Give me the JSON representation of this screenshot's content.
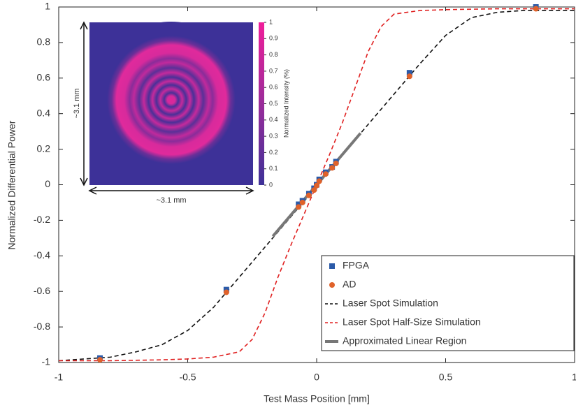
{
  "chart_data": {
    "type": "line",
    "x_label": "Test Mass Position [mm]",
    "y_label": "Normalized Differential Power",
    "xlim": [
      -1,
      1
    ],
    "ylim": [
      -1,
      1
    ],
    "xticks": [
      -1,
      -0.5,
      0,
      0.5,
      1
    ],
    "yticks": [
      -1,
      -0.8,
      -0.6,
      -0.4,
      -0.2,
      0,
      0.2,
      0.4,
      0.6,
      0.8,
      1
    ],
    "series": [
      {
        "name": "FPGA",
        "mode": "markers",
        "marker": "square",
        "color": "#2b5aa8",
        "x": [
          -0.84,
          -0.35,
          -0.07,
          -0.055,
          -0.03,
          -0.01,
          0.0,
          0.01,
          0.035,
          0.06,
          0.075,
          0.36,
          0.85
        ],
        "values": [
          -0.975,
          -0.59,
          -0.11,
          -0.09,
          -0.05,
          -0.02,
          0.0,
          0.03,
          0.07,
          0.1,
          0.13,
          0.63,
          1.0
        ]
      },
      {
        "name": "AD",
        "mode": "markers",
        "marker": "circle",
        "color": "#e0622a",
        "x": [
          -0.84,
          -0.35,
          -0.07,
          -0.055,
          -0.03,
          -0.01,
          0.0,
          0.01,
          0.035,
          0.06,
          0.075,
          0.36,
          0.85
        ],
        "values": [
          -0.985,
          -0.605,
          -0.125,
          -0.1,
          -0.06,
          -0.03,
          -0.005,
          0.02,
          0.06,
          0.095,
          0.12,
          0.61,
          0.99
        ]
      },
      {
        "name": "Laser Spot Simulation",
        "mode": "lines",
        "dash": "6,4",
        "color": "#111111",
        "x": [
          -1,
          -0.9,
          -0.8,
          -0.7,
          -0.6,
          -0.5,
          -0.4,
          -0.3,
          -0.2,
          -0.1,
          0,
          0.1,
          0.2,
          0.3,
          0.4,
          0.5,
          0.6,
          0.7,
          0.8,
          0.9,
          1
        ],
        "values": [
          -0.99,
          -0.98,
          -0.97,
          -0.94,
          -0.9,
          -0.82,
          -0.69,
          -0.52,
          -0.35,
          -0.18,
          -0.01,
          0.17,
          0.34,
          0.51,
          0.68,
          0.84,
          0.94,
          0.97,
          0.98,
          0.98,
          0.98
        ]
      },
      {
        "name": "Laser Spot Half-Size Simulation",
        "mode": "lines",
        "dash": "6,4",
        "color": "#e02020",
        "x": [
          -1,
          -0.8,
          -0.6,
          -0.5,
          -0.4,
          -0.3,
          -0.25,
          -0.2,
          -0.15,
          -0.1,
          -0.05,
          0,
          0.05,
          0.1,
          0.15,
          0.2,
          0.25,
          0.3,
          0.4,
          0.5,
          0.7,
          1
        ],
        "values": [
          -0.99,
          -0.99,
          -0.985,
          -0.98,
          -0.97,
          -0.94,
          -0.87,
          -0.72,
          -0.52,
          -0.34,
          -0.17,
          0,
          0.17,
          0.35,
          0.55,
          0.75,
          0.89,
          0.96,
          0.98,
          0.985,
          0.99,
          0.99
        ]
      },
      {
        "name": "Approximated Linear Region",
        "mode": "lines",
        "width": 4,
        "color": "#777777",
        "x": [
          -0.17,
          0.17
        ],
        "values": [
          -0.29,
          0.29
        ]
      }
    ],
    "inset": {
      "width_label": "~3.1 mm",
      "height_label": "~3.1 mm",
      "colorbar_label": "Normalized Intensity (%)",
      "colorbar_lim": [
        0,
        1
      ],
      "colorbar_ticks": [
        0,
        0.1,
        0.2,
        0.3,
        0.4,
        0.5,
        0.6,
        0.7,
        0.8,
        0.9,
        1
      ]
    }
  }
}
